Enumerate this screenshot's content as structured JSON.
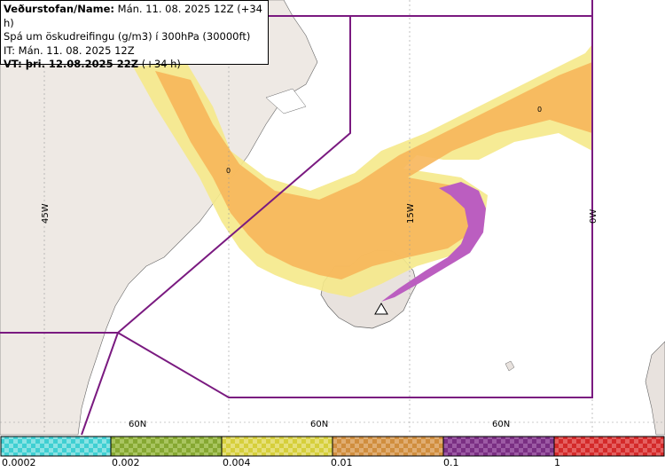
{
  "header": {
    "line1_bold": "Veðurstofan/Name:",
    "line1_rest": " Mán. 11. 08. 2025 12Z (+34 h)",
    "line2": "Spá um öskudreifingu (g/m3) í 300hPa (30000ft)",
    "line3": "IT: Mán. 11. 08. 2025 12Z",
    "line4_bold": "VT: þri. 12.08.2025 22Z",
    "line4_rest": " (+34 h)"
  },
  "graticule": {
    "lon_labels": [
      "45W",
      "15W",
      "0W"
    ],
    "lat_labels": [
      "60N",
      "60N",
      "60N"
    ]
  },
  "contour_labels": [
    "0",
    "0"
  ],
  "legend": {
    "ticks": [
      "0.0002",
      "0.002",
      "0.004",
      "0.01",
      "0.1",
      "1"
    ],
    "colors": [
      "#3fcfd2",
      "#86a832",
      "#d6cf3b",
      "#d08e3e",
      "#7a2f83",
      "#d42a2a"
    ]
  },
  "colors": {
    "fir_boundary": "#7a1a80",
    "land": "#e8e2de",
    "greenland": "#eee9e4",
    "ash_low": "#f5e98a",
    "ash_mid": "#f7b65a",
    "ash_high": "#bb5ec0"
  }
}
